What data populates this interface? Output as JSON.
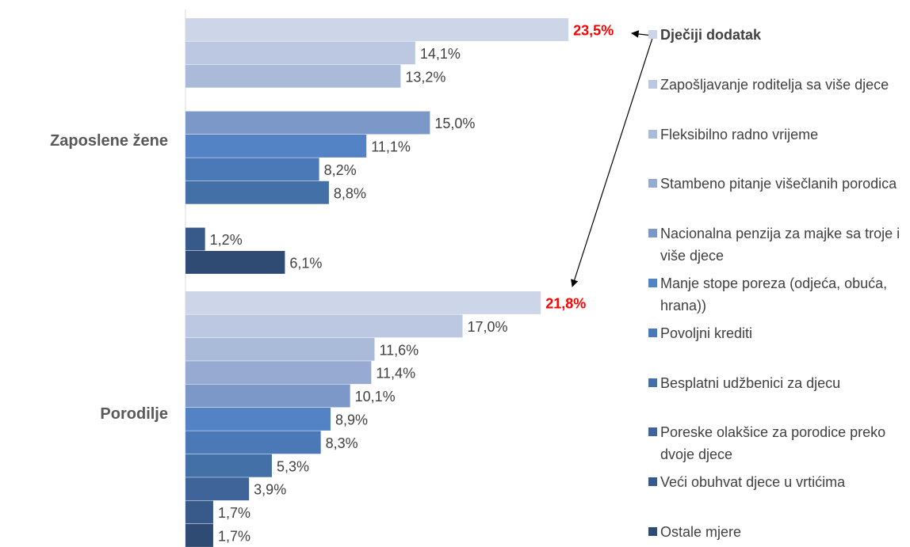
{
  "chart_data": {
    "type": "bar",
    "orientation": "horizontal",
    "categories": [
      "Zaposlene žene",
      "Porodilje"
    ],
    "xlim": [
      0,
      25
    ],
    "series": [
      {
        "name": "Dječiji dodatak",
        "color": "#cdd6e8",
        "values": [
          23.5,
          21.8
        ],
        "value_labels": [
          "23,5%",
          "21,8%"
        ],
        "label_color": "#ff0000"
      },
      {
        "name": "Zapošljavanje roditelja sa više djece",
        "color": "#bcc8e2",
        "values": [
          14.1,
          17.0
        ],
        "value_labels": [
          "14,1%",
          "17,0%"
        ]
      },
      {
        "name": "Fleksibilno radno vrijeme",
        "color": "#a9bbd9",
        "values": [
          13.2,
          11.6
        ],
        "value_labels": [
          "13,2%",
          "11,6%"
        ]
      },
      {
        "name": "Stambeno pitanje višečlanih porodica",
        "color": "#97abd2",
        "values": [
          null,
          11.4
        ],
        "value_labels": [
          null,
          "11,4%"
        ]
      },
      {
        "name": "Nacionalna penzija za majke sa troje i više djece",
        "color": "#7b98c8",
        "values": [
          15.0,
          10.1
        ],
        "value_labels": [
          "15,0%",
          "10,1%"
        ]
      },
      {
        "name": "Manje stope poreza (odjeća, obuća, hrana))",
        "color": "#5383c4",
        "values": [
          11.1,
          8.9
        ],
        "value_labels": [
          "11,1%",
          "8,9%"
        ]
      },
      {
        "name": "Povoljni krediti",
        "color": "#4b78b7",
        "values": [
          8.2,
          8.3
        ],
        "value_labels": [
          "8,2%",
          "8,3%"
        ]
      },
      {
        "name": "Besplatni udžbenici za djecu",
        "color": "#4470a8",
        "values": [
          8.8,
          5.3
        ],
        "value_labels": [
          "8,8%",
          "5,3%"
        ]
      },
      {
        "name": "Poreske olakšice za porodice preko dvoje djece",
        "color": "#3e6499",
        "values": [
          null,
          3.9
        ],
        "value_labels": [
          null,
          "3,9%"
        ]
      },
      {
        "name": "Veći obuhvat djece u vrtićima",
        "color": "#385a8a",
        "values": [
          1.2,
          1.7
        ],
        "value_labels": [
          "1,2%",
          "1,7%"
        ]
      },
      {
        "name": "Ostale mjere",
        "color": "#2f4b73",
        "values": [
          6.1,
          1.7
        ],
        "value_labels": [
          "6,1%",
          "1,7%"
        ]
      }
    ]
  }
}
